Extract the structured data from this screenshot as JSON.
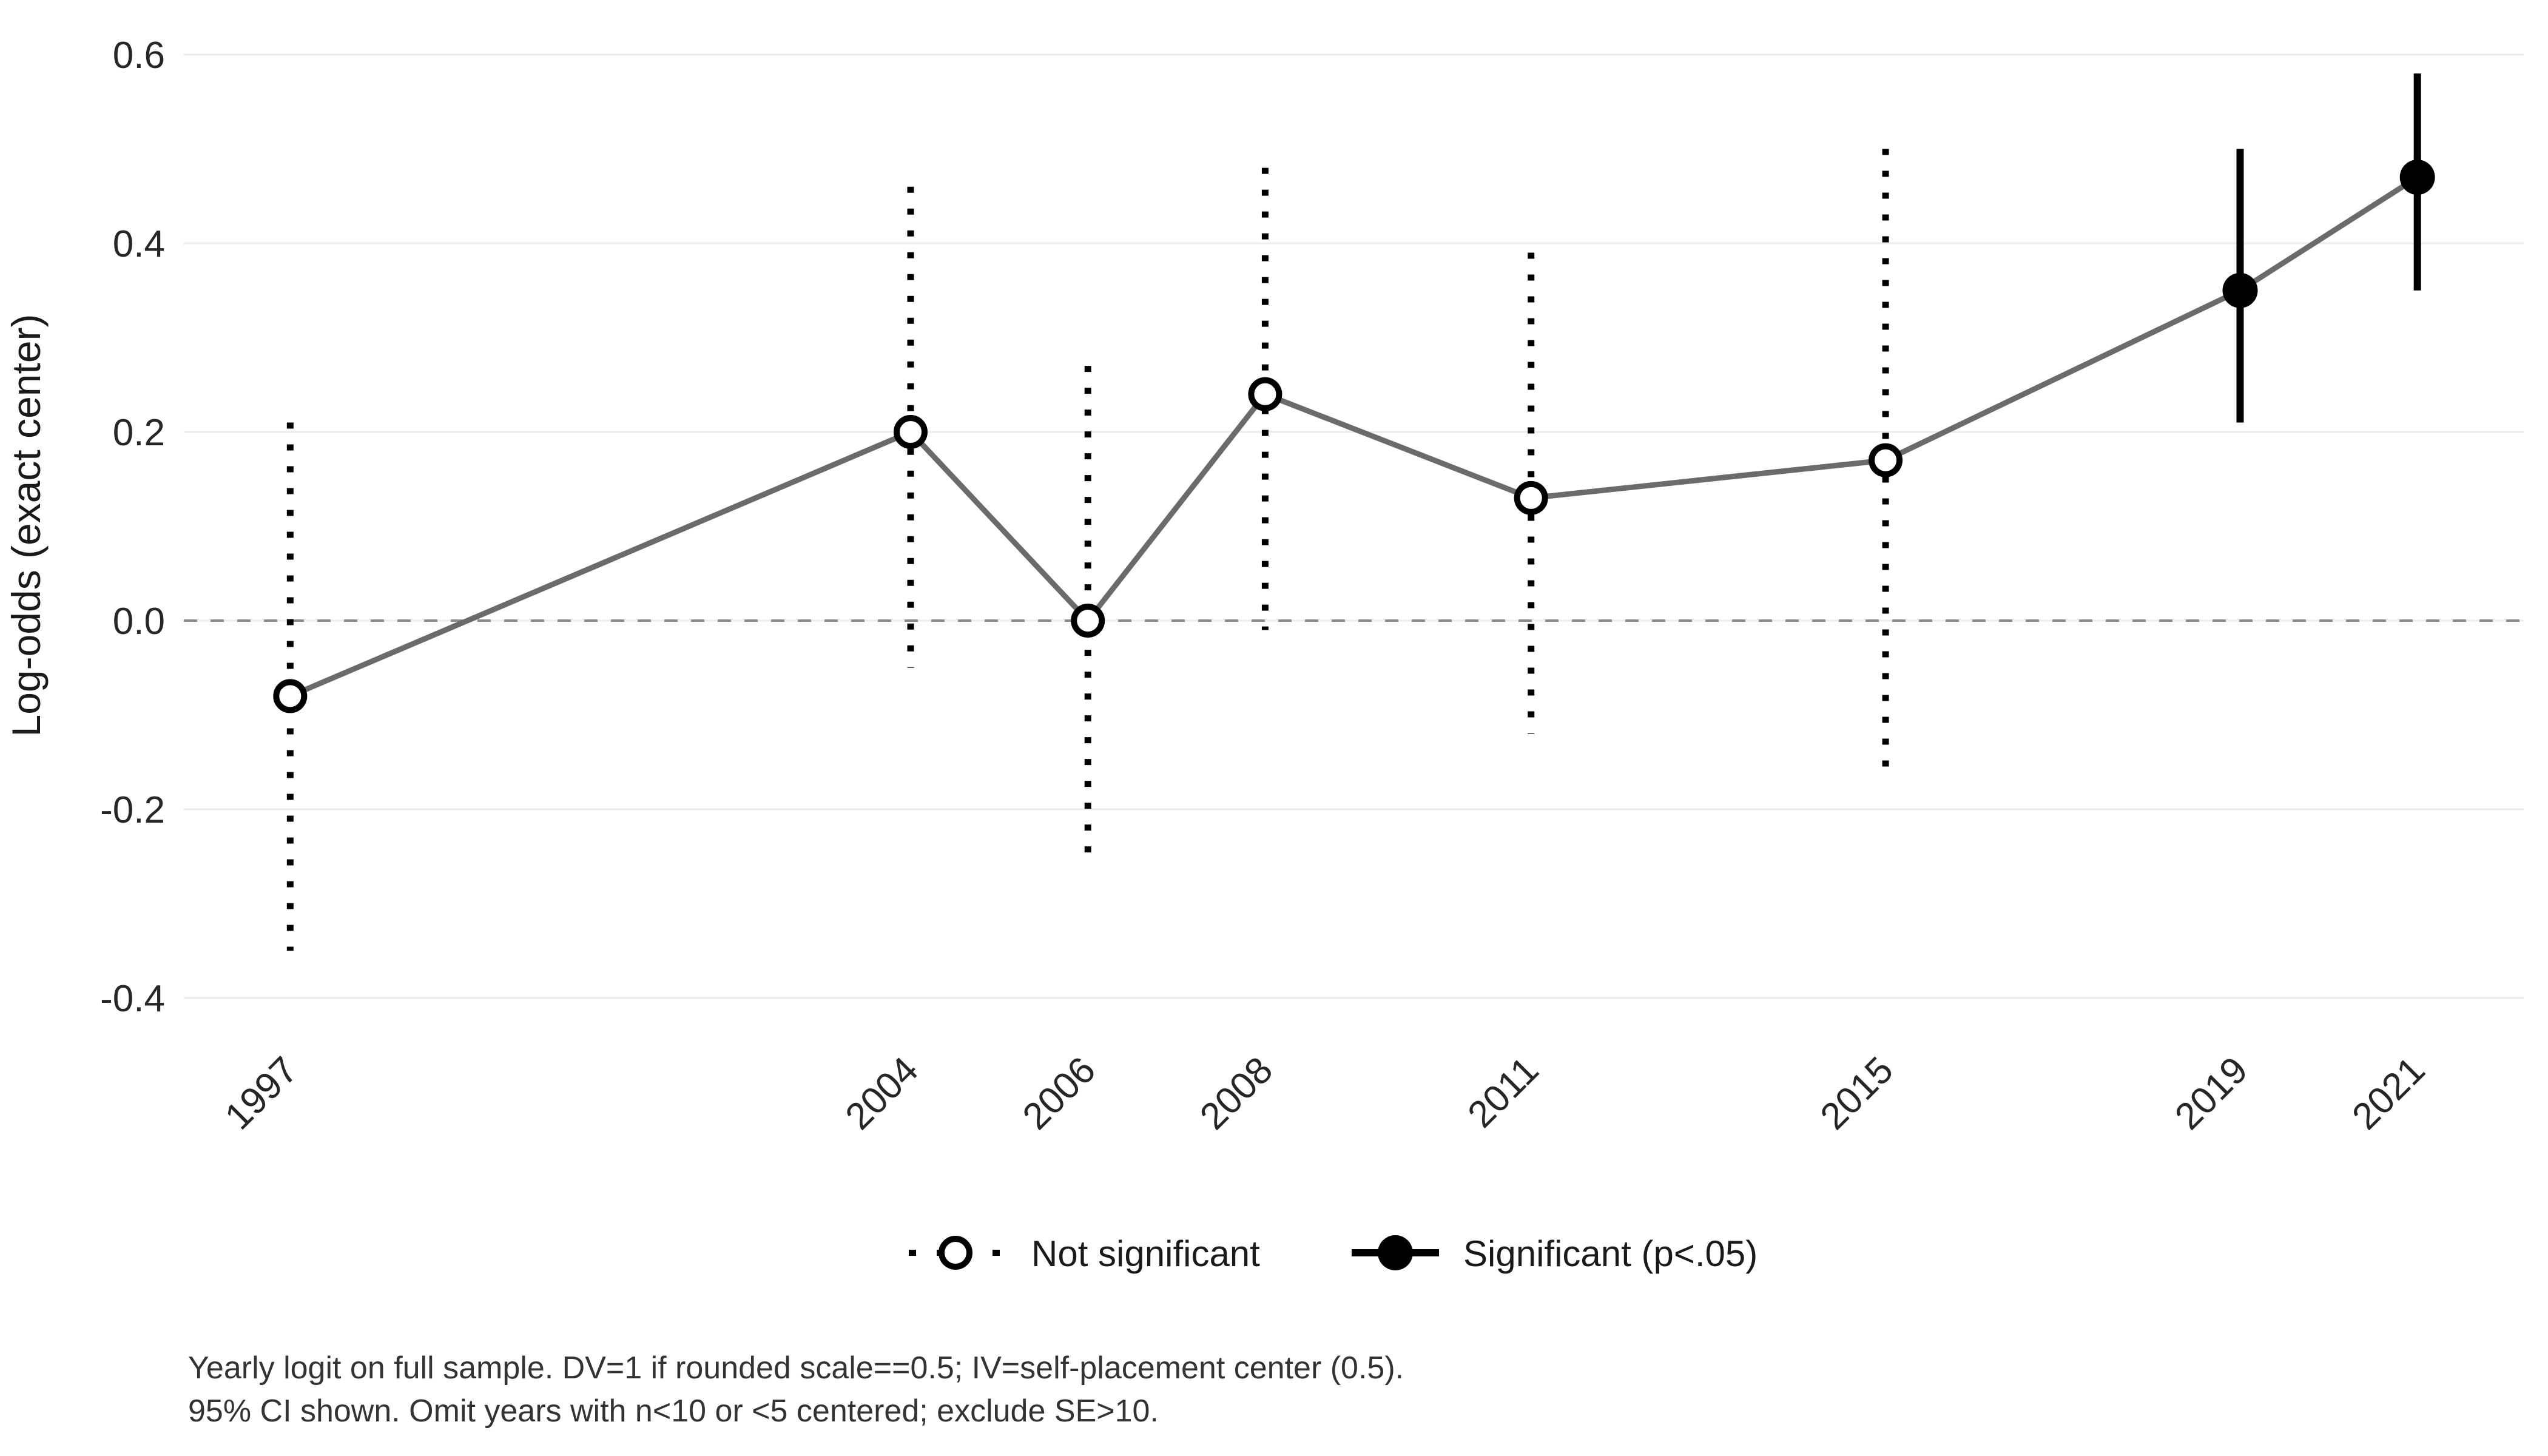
{
  "chart_data": {
    "type": "line",
    "subtype": "point-estimates-with-error-bars",
    "title": "",
    "xlabel": "",
    "ylabel": "Log-odds (exact center)",
    "x": [
      1997,
      2004,
      2006,
      2008,
      2011,
      2015,
      2019,
      2021
    ],
    "x_tick_labels": [
      "1997",
      "2004",
      "2006",
      "2008",
      "2011",
      "2015",
      "2019",
      "2021"
    ],
    "series": [
      {
        "name": "estimate",
        "values": [
          -0.08,
          0.2,
          0.0,
          0.24,
          0.13,
          0.17,
          0.35,
          0.47
        ]
      },
      {
        "name": "ci_low",
        "values": [
          -0.35,
          -0.05,
          -0.26,
          -0.01,
          -0.12,
          -0.16,
          0.21,
          0.35
        ]
      },
      {
        "name": "ci_high",
        "values": [
          0.21,
          0.46,
          0.27,
          0.48,
          0.39,
          0.5,
          0.5,
          0.58
        ]
      }
    ],
    "significant": [
      false,
      false,
      false,
      false,
      false,
      false,
      true,
      true
    ],
    "y_ticks": [
      {
        "value": -0.4,
        "label": "-0.4"
      },
      {
        "value": -0.2,
        "label": "-0.2"
      },
      {
        "value": 0.0,
        "label": "0.0"
      },
      {
        "value": 0.2,
        "label": "0.2"
      },
      {
        "value": 0.4,
        "label": "0.4"
      },
      {
        "value": 0.6,
        "label": "0.6"
      }
    ],
    "ylim": [
      -0.47,
      0.64
    ],
    "xlim": [
      1995.8,
      2022.2
    ],
    "zero_reference_line": 0.0,
    "grid": "horizontal-only",
    "legend_position": "bottom-center",
    "legend": {
      "entries": [
        {
          "label": "Not significant",
          "marker": "open-circle",
          "line": "dotted"
        },
        {
          "label": "Significant (p<.05)",
          "marker": "filled-circle",
          "line": "solid"
        }
      ]
    },
    "caption": {
      "line1": "Yearly logit on full sample. DV=1 if rounded scale==0.5; IV=self-placement center (0.5).",
      "line2": "95% CI shown. Omit years with n<10 or <5 centered; exclude SE>10."
    }
  },
  "colors": {
    "background": "#ffffff",
    "gridline": "#ececec",
    "zero_line": "#8c8c8c",
    "trend_line": "#6b6b6b",
    "points_and_ci": "#000000",
    "axis_text": "#262626",
    "caption_text": "#333333"
  }
}
